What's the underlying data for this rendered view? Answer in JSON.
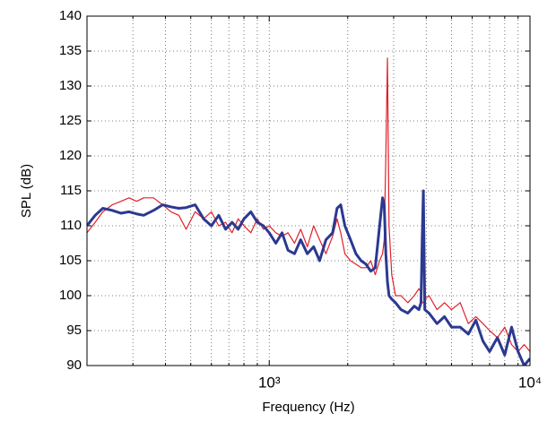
{
  "chart_data": {
    "type": "line",
    "xlabel": "Frequency (Hz)",
    "ylabel": "SPL (dB)",
    "xscale": "log",
    "grid": true,
    "xlim": [
      200,
      10000
    ],
    "ylim": [
      90,
      140
    ],
    "xticks": [
      {
        "value": 1000,
        "label": "10³"
      },
      {
        "value": 10000,
        "label": "10⁴"
      }
    ],
    "xminorticks": [
      300,
      400,
      500,
      600,
      700,
      800,
      900,
      2000,
      3000,
      4000,
      5000,
      6000,
      7000,
      8000,
      9000
    ],
    "yticks": [
      90,
      95,
      100,
      105,
      110,
      115,
      120,
      125,
      130,
      135,
      140
    ],
    "x": [
      200,
      215,
      230,
      250,
      270,
      290,
      310,
      330,
      360,
      390,
      420,
      450,
      480,
      520,
      560,
      600,
      640,
      680,
      720,
      760,
      800,
      850,
      900,
      950,
      1000,
      1060,
      1120,
      1180,
      1250,
      1320,
      1400,
      1480,
      1560,
      1650,
      1750,
      1820,
      1880,
      1950,
      2050,
      2150,
      2250,
      2350,
      2450,
      2550,
      2650,
      2720,
      2760,
      2800,
      2840,
      2880,
      2950,
      3050,
      3200,
      3400,
      3600,
      3750,
      3820,
      3860,
      3900,
      3950,
      4100,
      4400,
      4700,
      5000,
      5400,
      5800,
      6200,
      6600,
      7000,
      7500,
      8000,
      8500,
      9000,
      9500,
      10000
    ],
    "series": [
      {
        "color": "#e0202a",
        "width": 1.2,
        "values": [
          109,
          110.5,
          112,
          113,
          113.5,
          114,
          113.5,
          114,
          114,
          113,
          112,
          111.5,
          109.5,
          112,
          111,
          112,
          110,
          110.5,
          109,
          111,
          110,
          109,
          111,
          109.5,
          110,
          109,
          108.5,
          109,
          107.5,
          109.5,
          107,
          110,
          108,
          106,
          108.5,
          111,
          109,
          106,
          105,
          104.5,
          104,
          104,
          105,
          103,
          105,
          106,
          108,
          120,
          134,
          110,
          103,
          100,
          100,
          99,
          100,
          101,
          100.5,
          99,
          99,
          99.5,
          100,
          98,
          99,
          98,
          99,
          96,
          97,
          96,
          95,
          94,
          95.5,
          93,
          92,
          93,
          92
        ]
      },
      {
        "color": "#2b3990",
        "width": 3,
        "values": [
          110,
          111.5,
          112.5,
          112.2,
          111.8,
          112,
          111.7,
          111.5,
          112.2,
          113,
          112.7,
          112.5,
          112.6,
          113,
          111,
          110,
          111.5,
          109.5,
          110.5,
          109.5,
          111,
          112,
          110.5,
          110,
          109,
          107.5,
          109,
          106.5,
          106,
          108,
          106,
          107,
          105,
          108,
          109,
          112.5,
          113,
          110,
          108,
          106,
          105,
          104.5,
          103.5,
          104,
          110,
          114,
          113,
          106,
          102,
          100,
          99.5,
          99,
          98,
          97.5,
          98.5,
          98,
          99,
          108,
          115,
          98,
          97.5,
          96,
          97,
          95.5,
          95.5,
          94.5,
          96.5,
          93.5,
          92,
          94,
          91.5,
          95.5,
          92,
          90,
          91
        ]
      }
    ]
  }
}
